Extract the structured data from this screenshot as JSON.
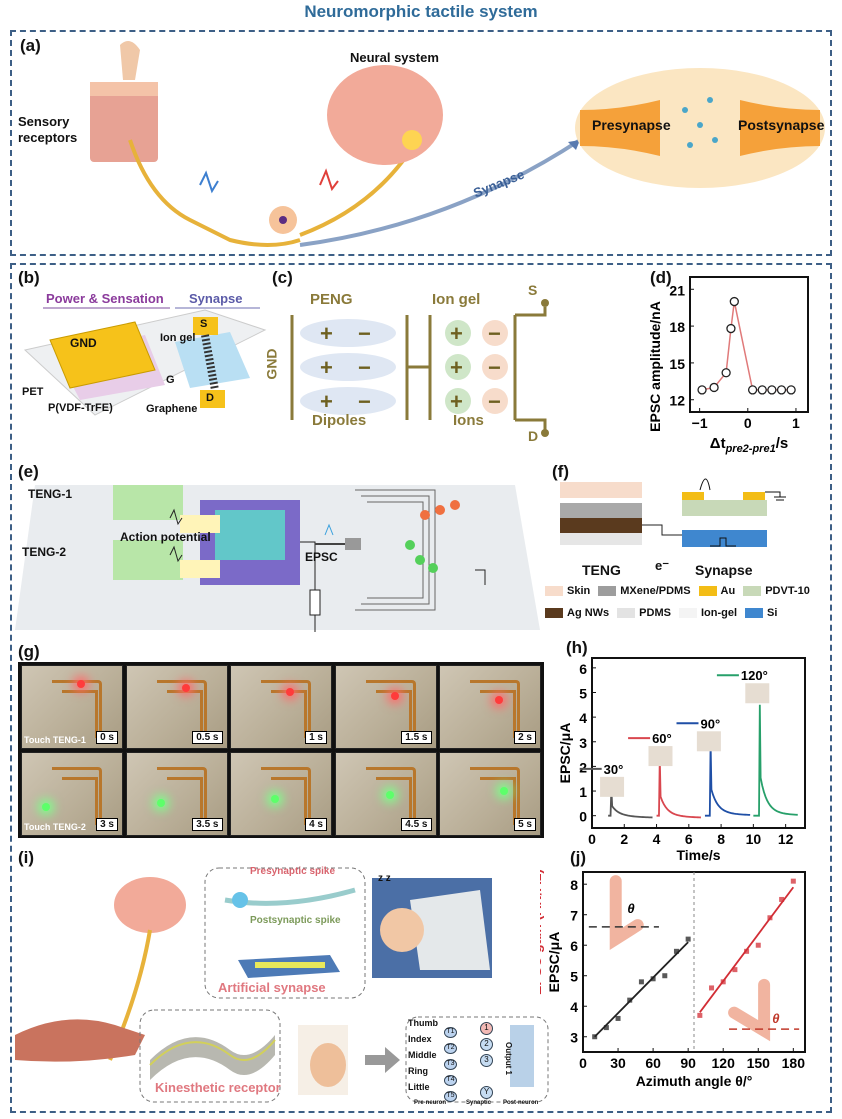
{
  "title": "Neuromorphic tactile system",
  "colors": {
    "accent": "#2f6b99",
    "border": "#3d5f86",
    "red": "#d22d35",
    "green": "#27a06a",
    "blue": "#1f4fa6",
    "gold": "#8a7a3a"
  },
  "a": {
    "label": "(a)",
    "sensory": "Sensory receptors",
    "neural": "Neural system",
    "synapse": "Synapse",
    "pre": "Presynapse",
    "post": "Postsynapse"
  },
  "b": {
    "label": "(b)",
    "power": "Power & Sensation",
    "synapse": "Synapse",
    "gnd": "GND",
    "iongel": "Ion gel",
    "s": "S",
    "g": "G",
    "d": "D",
    "pet": "PET",
    "pvdf": "P(VDF-TrFE)",
    "graphene": "Graphene"
  },
  "c": {
    "label": "(c)",
    "peng": "PENG",
    "iongel": "Ion gel",
    "gnd": "GND",
    "dipoles": "Dipoles",
    "ions": "Ions",
    "s": "S",
    "d": "D"
  },
  "e": {
    "label": "(e)",
    "teng1": "TENG-1",
    "teng2": "TENG-2",
    "ap": "Action potential",
    "epsc": "EPSC"
  },
  "f": {
    "label": "(f)",
    "teng": "TENG",
    "electron": "e⁻",
    "synapse": "Synapse",
    "legend": [
      {
        "name": "Skin",
        "color": "#f7dccb"
      },
      {
        "name": "MXene/PDMS",
        "color": "#9d9d9d"
      },
      {
        "name": "Au",
        "color": "#f3bd16"
      },
      {
        "name": "PDVT-10",
        "color": "#c8d9b8"
      },
      {
        "name": "Ag NWs",
        "color": "#5a3a1e"
      },
      {
        "name": "PDMS",
        "color": "#e3e3e3"
      },
      {
        "name": "Ion-gel",
        "color": "#f4f4f4"
      },
      {
        "name": "Si",
        "color": "#3f87cf"
      }
    ]
  },
  "g": {
    "label": "(g)",
    "row1": "Touch TENG-1",
    "row2": "Touch TENG-2",
    "times": [
      "0 s",
      "0.5 s",
      "1 s",
      "1.5 s",
      "2 s",
      "3 s",
      "3.5 s",
      "4 s",
      "4.5 s",
      "5 s"
    ]
  },
  "i": {
    "label": "(i)",
    "pre_spike": "Presynaptic spike",
    "post_spike": "Postsynaptic spike",
    "art_syn": "Artificial synapse",
    "kin": "Kinesthetic receptor",
    "zz": "z z",
    "fingers": [
      "Thumb",
      "Index",
      "Middle",
      "Ring",
      "Little"
    ],
    "inputs": [
      "T1",
      "T2",
      "T3",
      "T4",
      "T5"
    ],
    "outputs": [
      "1",
      "2",
      "3",
      "Y"
    ],
    "output": "Output 1",
    "pre_neuron": "Pre-neuron",
    "synaptic": "Synaptic",
    "post_neuron": "Post-neuron"
  },
  "chart_data": [
    {
      "id": "d",
      "label": "(d)",
      "type": "line",
      "xlabel": "Δt",
      "xlabel_sub": "pre2-pre1",
      "xlabel_unit": "/s",
      "ylabel": "EPSC amplitude/nA",
      "xlim": [
        -1.2,
        1.25
      ],
      "ylim": [
        11,
        22
      ],
      "xticks": [
        -1,
        0,
        1
      ],
      "yticks": [
        12,
        15,
        18,
        21
      ],
      "x": [
        -0.95,
        -0.7,
        -0.45,
        -0.35,
        -0.28,
        0.1,
        0.3,
        0.5,
        0.7,
        0.9
      ],
      "y": [
        12.8,
        13.0,
        14.2,
        17.8,
        20.0,
        12.8,
        12.8,
        12.8,
        12.8,
        12.8
      ]
    },
    {
      "id": "h",
      "label": "(h)",
      "type": "line",
      "xlabel": "Time/s",
      "ylabel": "EPSC/μA",
      "xlim": [
        0,
        13.2
      ],
      "ylim": [
        -0.5,
        6.4
      ],
      "xticks": [
        0,
        2,
        4,
        6,
        8,
        10,
        12
      ],
      "yticks": [
        0,
        1,
        2,
        3,
        4,
        5,
        6
      ],
      "series": [
        {
          "name": "30°",
          "color": "#555555",
          "start": 1.0,
          "peak_t": 1.2,
          "peak": 1.1,
          "end": 3.8,
          "tail": -0.1
        },
        {
          "name": "60°",
          "color": "#d9474f",
          "start": 4.0,
          "peak_t": 4.2,
          "peak": 2.35,
          "end": 6.8,
          "tail": -0.1
        },
        {
          "name": "90°",
          "color": "#1f4fa6",
          "start": 7.0,
          "peak_t": 7.35,
          "peak": 2.95,
          "end": 9.8,
          "tail": 0.0
        },
        {
          "name": "120°",
          "color": "#27a06a",
          "start": 10.0,
          "peak_t": 10.4,
          "peak": 4.5,
          "end": 12.8,
          "tail": 0.0
        }
      ]
    },
    {
      "id": "j",
      "label": "(j)",
      "type": "scatter",
      "xlabel": "Azimuth angle θ/°",
      "ylabel": "EPSC/μA",
      "y2label": "EPSC gain (AN/A1)",
      "theta": "θ",
      "xlim": [
        0,
        190
      ],
      "ylim": [
        2.5,
        8.4
      ],
      "xticks": [
        0,
        30,
        60,
        90,
        120,
        150,
        180
      ],
      "yticks": [
        3,
        4,
        5,
        6,
        7,
        8
      ],
      "series": [
        {
          "name": "EPSC",
          "color": "#222222",
          "x": [
            10,
            20,
            30,
            40,
            50,
            60,
            70,
            80,
            90
          ],
          "y": [
            3.0,
            3.3,
            3.6,
            4.2,
            4.8,
            4.9,
            5.0,
            5.8,
            6.2
          ],
          "fit": [
            [
              10,
              3.0
            ],
            [
              90,
              6.1
            ]
          ]
        },
        {
          "name": "EPSC gain",
          "color": "#d22d35",
          "x": [
            100,
            110,
            120,
            130,
            140,
            150,
            160,
            170,
            180
          ],
          "y": [
            3.7,
            4.6,
            4.8,
            5.2,
            5.8,
            6.0,
            6.9,
            7.5,
            8.1
          ],
          "fit": [
            [
              100,
              3.8
            ],
            [
              180,
              7.9
            ]
          ]
        }
      ]
    }
  ]
}
